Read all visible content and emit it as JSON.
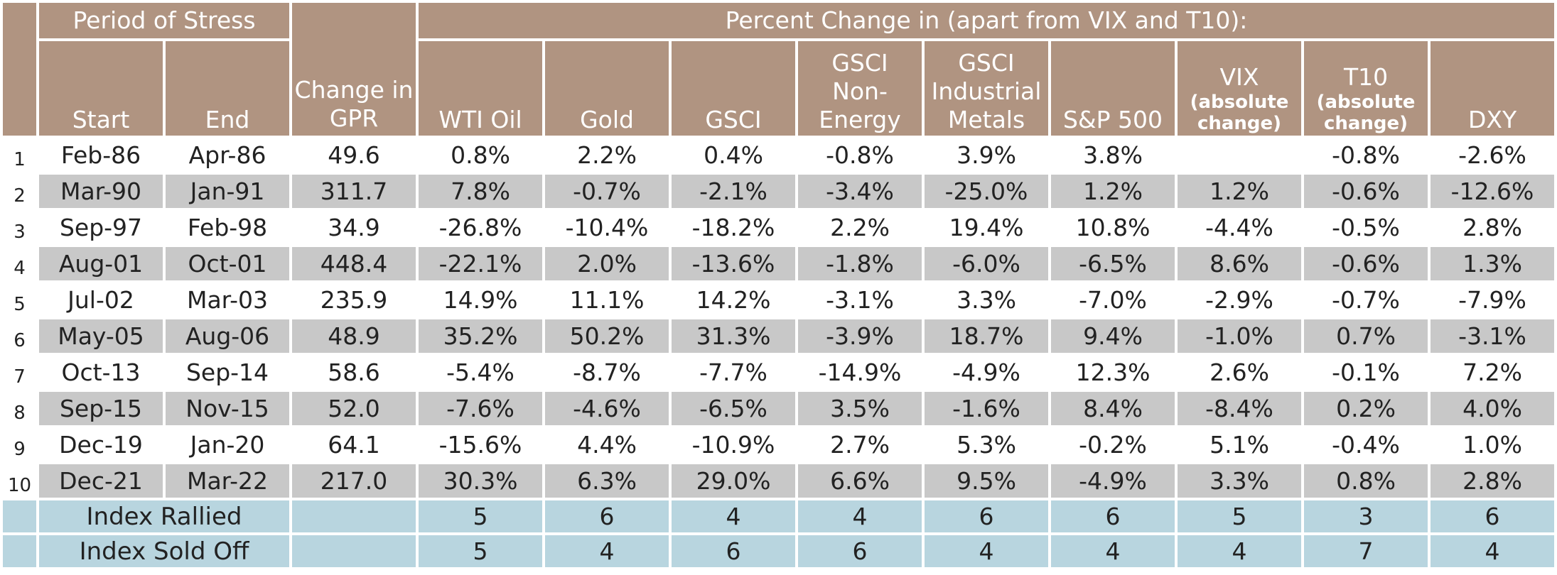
{
  "header": {
    "period_group": "Period of Stress",
    "start": "Start",
    "end": "End",
    "gpr_line1": "Change in",
    "gpr_line2": "GPR",
    "pct_group": "Percent Change in (apart from VIX and T10):",
    "assets": [
      {
        "l1": "WTI Oil"
      },
      {
        "l1": "Gold"
      },
      {
        "l1": "GSCI"
      },
      {
        "l1": "GSCI",
        "l2": "Non-",
        "l3": "Energy"
      },
      {
        "l1": "GSCI",
        "l2": "Industrial",
        "l3": "Metals"
      },
      {
        "l1": "S&P 500"
      },
      {
        "l1": "VIX",
        "sub1": "(absolute",
        "sub2": "change)"
      },
      {
        "l1": "T10",
        "sub1": "(absolute",
        "sub2": "change)"
      },
      {
        "l1": "DXY"
      }
    ]
  },
  "rows": [
    {
      "n": "1",
      "start": "Feb-86",
      "end": "Apr-86",
      "gpr": "49.6",
      "vals": [
        "0.8%",
        "2.2%",
        "0.4%",
        "-0.8%",
        "3.9%",
        "3.8%",
        "",
        "-0.8%",
        "-2.6%"
      ]
    },
    {
      "n": "2",
      "start": "Mar-90",
      "end": "Jan-91",
      "gpr": "311.7",
      "vals": [
        "7.8%",
        "-0.7%",
        "-2.1%",
        "-3.4%",
        "-25.0%",
        "1.2%",
        "1.2%",
        "-0.6%",
        "-12.6%"
      ]
    },
    {
      "n": "3",
      "start": "Sep-97",
      "end": "Feb-98",
      "gpr": "34.9",
      "vals": [
        "-26.8%",
        "-10.4%",
        "-18.2%",
        "2.2%",
        "19.4%",
        "10.8%",
        "-4.4%",
        "-0.5%",
        "2.8%"
      ]
    },
    {
      "n": "4",
      "start": "Aug-01",
      "end": "Oct-01",
      "gpr": "448.4",
      "vals": [
        "-22.1%",
        "2.0%",
        "-13.6%",
        "-1.8%",
        "-6.0%",
        "-6.5%",
        "8.6%",
        "-0.6%",
        "1.3%"
      ]
    },
    {
      "n": "5",
      "start": "Jul-02",
      "end": "Mar-03",
      "gpr": "235.9",
      "vals": [
        "14.9%",
        "11.1%",
        "14.2%",
        "-3.1%",
        "3.3%",
        "-7.0%",
        "-2.9%",
        "-0.7%",
        "-7.9%"
      ]
    },
    {
      "n": "6",
      "start": "May-05",
      "end": "Aug-06",
      "gpr": "48.9",
      "vals": [
        "35.2%",
        "50.2%",
        "31.3%",
        "-3.9%",
        "18.7%",
        "9.4%",
        "-1.0%",
        "0.7%",
        "-3.1%"
      ]
    },
    {
      "n": "7",
      "start": "Oct-13",
      "end": "Sep-14",
      "gpr": "58.6",
      "vals": [
        "-5.4%",
        "-8.7%",
        "-7.7%",
        "-14.9%",
        "-4.9%",
        "12.3%",
        "2.6%",
        "-0.1%",
        "7.2%"
      ]
    },
    {
      "n": "8",
      "start": "Sep-15",
      "end": "Nov-15",
      "gpr": "52.0",
      "vals": [
        "-7.6%",
        "-4.6%",
        "-6.5%",
        "3.5%",
        "-1.6%",
        "8.4%",
        "-8.4%",
        "0.2%",
        "4.0%"
      ]
    },
    {
      "n": "9",
      "start": "Dec-19",
      "end": "Jan-20",
      "gpr": "64.1",
      "vals": [
        "-15.6%",
        "4.4%",
        "-10.9%",
        "2.7%",
        "5.3%",
        "-0.2%",
        "5.1%",
        "-0.4%",
        "1.0%"
      ]
    },
    {
      "n": "10",
      "start": "Dec-21",
      "end": "Mar-22",
      "gpr": "217.0",
      "vals": [
        "30.3%",
        "6.3%",
        "29.0%",
        "6.6%",
        "9.5%",
        "-4.9%",
        "3.3%",
        "0.8%",
        "2.8%"
      ]
    }
  ],
  "summary": [
    {
      "label": "Index Rallied",
      "vals": [
        "5",
        "6",
        "4",
        "4",
        "6",
        "6",
        "5",
        "3",
        "6"
      ]
    },
    {
      "label": "Index Sold Off",
      "vals": [
        "5",
        "4",
        "6",
        "6",
        "4",
        "4",
        "4",
        "7",
        "4"
      ]
    }
  ],
  "colors": {
    "header_bg": "#b09481",
    "row_stripe": "#c8c8c8",
    "summary_bg": "#b8d5df"
  }
}
